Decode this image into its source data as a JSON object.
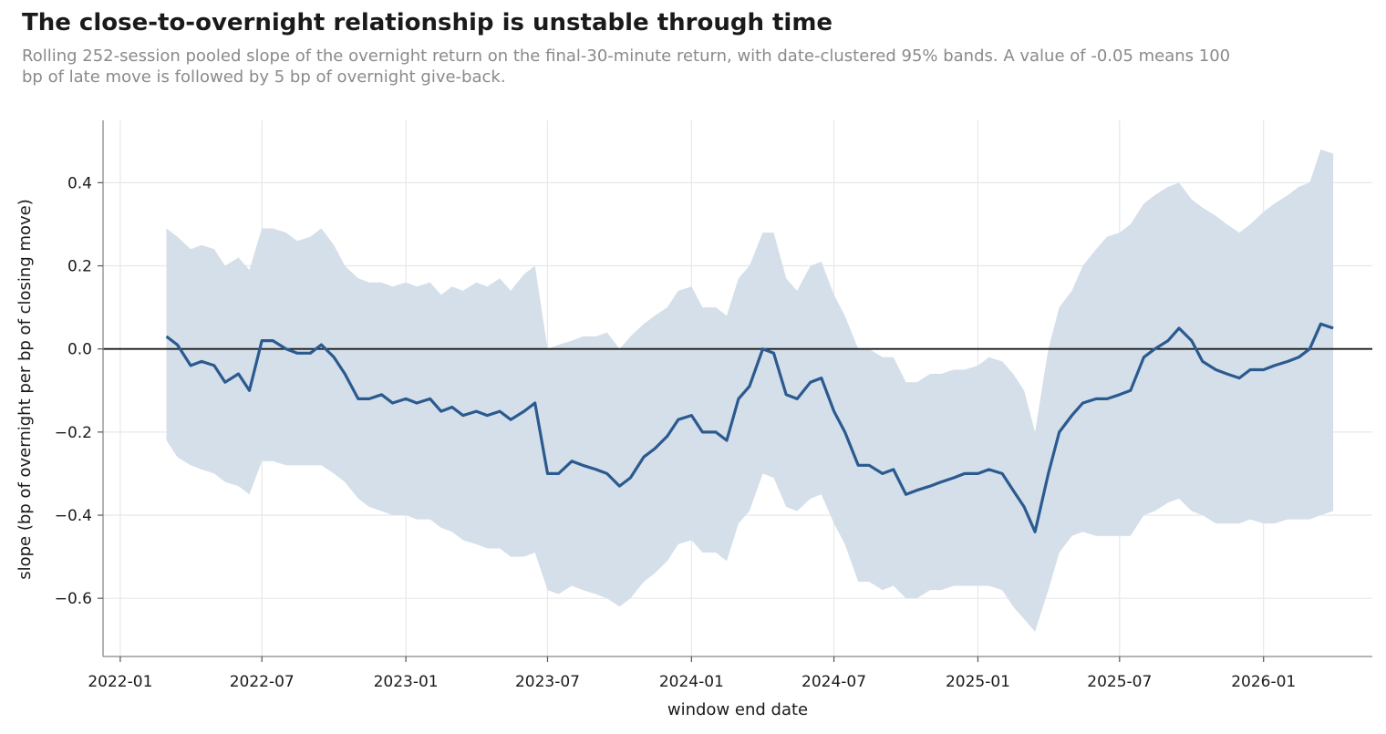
{
  "chart_data": {
    "type": "line",
    "title": "The close-to-overnight relationship is unstable through time",
    "subtitle": "Rolling 252-session pooled slope of the overnight return on the final-30-minute return, with date-clustered 95% bands. A value of -0.05 means 100 bp of late move is followed by 5 bp of overnight give-back.",
    "xlabel": "window end date",
    "ylabel": "slope (bp of overnight per bp of closing move)",
    "x_ticks": [
      "2022-01",
      "2022-07",
      "2023-01",
      "2023-07",
      "2024-01",
      "2024-07",
      "2025-01",
      "2025-07",
      "2026-01"
    ],
    "y_ticks": [
      0.4,
      0.2,
      0.0,
      -0.2,
      -0.4,
      -0.6
    ],
    "y_tick_labels": [
      "0.4",
      "0.2",
      "0.0",
      "−0.2",
      "−0.4",
      "−0.6"
    ],
    "ylim": [
      -0.74,
      0.55
    ],
    "xlim": [
      "2021-12-10",
      "2026-05-20"
    ],
    "grid": true,
    "zero_line": true,
    "colors": {
      "line": "#2b5a8f",
      "band": "#d4dfea",
      "grid": "#e6e8eb",
      "zero": "#1a1a1a"
    },
    "series": [
      {
        "x": [
          "2022-03-01",
          "2022-03-15",
          "2022-04-01",
          "2022-04-15",
          "2022-05-01",
          "2022-05-15",
          "2022-06-01",
          "2022-06-15",
          "2022-07-01",
          "2022-07-15",
          "2022-08-01",
          "2022-08-15",
          "2022-09-01",
          "2022-09-15",
          "2022-10-01",
          "2022-10-15",
          "2022-11-01",
          "2022-11-15",
          "2022-12-01",
          "2022-12-15",
          "2023-01-01",
          "2023-01-15",
          "2023-02-01",
          "2023-02-15",
          "2023-03-01",
          "2023-03-15",
          "2023-04-01",
          "2023-04-15",
          "2023-05-01",
          "2023-05-15",
          "2023-06-01",
          "2023-06-15",
          "2023-07-01",
          "2023-07-15",
          "2023-08-01",
          "2023-08-15",
          "2023-09-01",
          "2023-09-15",
          "2023-10-01",
          "2023-10-15",
          "2023-11-01",
          "2023-11-15",
          "2023-12-01",
          "2023-12-15",
          "2024-01-01",
          "2024-01-15",
          "2024-02-01",
          "2024-02-15",
          "2024-03-01",
          "2024-03-15",
          "2024-04-01",
          "2024-04-15",
          "2024-05-01",
          "2024-05-15",
          "2024-06-01",
          "2024-06-15",
          "2024-07-01",
          "2024-07-15",
          "2024-08-01",
          "2024-08-15",
          "2024-09-01",
          "2024-09-15",
          "2024-10-01",
          "2024-10-15",
          "2024-11-01",
          "2024-11-15",
          "2024-12-01",
          "2024-12-15",
          "2025-01-01",
          "2025-01-15",
          "2025-02-01",
          "2025-02-15",
          "2025-03-01",
          "2025-03-15",
          "2025-04-01",
          "2025-04-15",
          "2025-05-01",
          "2025-05-15",
          "2025-06-01",
          "2025-06-15",
          "2025-07-01",
          "2025-07-15",
          "2025-08-01",
          "2025-08-15",
          "2025-09-01",
          "2025-09-15",
          "2025-10-01",
          "2025-10-15",
          "2025-11-01",
          "2025-11-15",
          "2025-12-01",
          "2025-12-15",
          "2026-01-01",
          "2026-01-15",
          "2026-02-01",
          "2026-02-15",
          "2026-03-01",
          "2026-03-15",
          "2026-03-31"
        ],
        "slope": [
          0.03,
          0.01,
          -0.04,
          -0.03,
          -0.04,
          -0.08,
          -0.06,
          -0.1,
          0.02,
          0.02,
          0.0,
          -0.01,
          -0.01,
          0.01,
          -0.02,
          -0.06,
          -0.12,
          -0.12,
          -0.11,
          -0.13,
          -0.12,
          -0.13,
          -0.12,
          -0.15,
          -0.14,
          -0.16,
          -0.15,
          -0.16,
          -0.15,
          -0.17,
          -0.15,
          -0.13,
          -0.3,
          -0.3,
          -0.27,
          -0.28,
          -0.29,
          -0.3,
          -0.33,
          -0.31,
          -0.26,
          -0.24,
          -0.21,
          -0.17,
          -0.16,
          -0.2,
          -0.2,
          -0.22,
          -0.12,
          -0.09,
          0.0,
          -0.01,
          -0.11,
          -0.12,
          -0.08,
          -0.07,
          -0.15,
          -0.2,
          -0.28,
          -0.28,
          -0.3,
          -0.29,
          -0.35,
          -0.34,
          -0.33,
          -0.32,
          -0.31,
          -0.3,
          -0.3,
          -0.29,
          -0.3,
          -0.34,
          -0.38,
          -0.44,
          -0.3,
          -0.2,
          -0.16,
          -0.13,
          -0.12,
          -0.12,
          -0.11,
          -0.1,
          -0.02,
          0.0,
          0.02,
          0.05,
          0.02,
          -0.03,
          -0.05,
          -0.06,
          -0.07,
          -0.05,
          -0.05,
          -0.04,
          -0.03,
          -0.02,
          0.0,
          0.06,
          0.05
        ],
        "lower": [
          -0.22,
          -0.26,
          -0.28,
          -0.29,
          -0.3,
          -0.32,
          -0.33,
          -0.35,
          -0.27,
          -0.27,
          -0.28,
          -0.28,
          -0.28,
          -0.28,
          -0.3,
          -0.32,
          -0.36,
          -0.38,
          -0.39,
          -0.4,
          -0.4,
          -0.41,
          -0.41,
          -0.43,
          -0.44,
          -0.46,
          -0.47,
          -0.48,
          -0.48,
          -0.5,
          -0.5,
          -0.49,
          -0.58,
          -0.59,
          -0.57,
          -0.58,
          -0.59,
          -0.6,
          -0.62,
          -0.6,
          -0.56,
          -0.54,
          -0.51,
          -0.47,
          -0.46,
          -0.49,
          -0.49,
          -0.51,
          -0.42,
          -0.39,
          -0.3,
          -0.31,
          -0.38,
          -0.39,
          -0.36,
          -0.35,
          -0.42,
          -0.47,
          -0.56,
          -0.56,
          -0.58,
          -0.57,
          -0.6,
          -0.6,
          -0.58,
          -0.58,
          -0.57,
          -0.57,
          -0.57,
          -0.57,
          -0.58,
          -0.62,
          -0.65,
          -0.68,
          -0.58,
          -0.49,
          -0.45,
          -0.44,
          -0.45,
          -0.45,
          -0.45,
          -0.45,
          -0.4,
          -0.39,
          -0.37,
          -0.36,
          -0.39,
          -0.4,
          -0.42,
          -0.42,
          -0.42,
          -0.41,
          -0.42,
          -0.42,
          -0.41,
          -0.41,
          -0.41,
          -0.4,
          -0.39
        ],
        "upper": [
          0.29,
          0.27,
          0.24,
          0.25,
          0.24,
          0.2,
          0.22,
          0.19,
          0.29,
          0.29,
          0.28,
          0.26,
          0.27,
          0.29,
          0.25,
          0.2,
          0.17,
          0.16,
          0.16,
          0.15,
          0.16,
          0.15,
          0.16,
          0.13,
          0.15,
          0.14,
          0.16,
          0.15,
          0.17,
          0.14,
          0.18,
          0.2,
          0.0,
          0.01,
          0.02,
          0.03,
          0.03,
          0.04,
          0.0,
          0.03,
          0.06,
          0.08,
          0.1,
          0.14,
          0.15,
          0.1,
          0.1,
          0.08,
          0.17,
          0.2,
          0.28,
          0.28,
          0.17,
          0.14,
          0.2,
          0.21,
          0.13,
          0.08,
          0.0,
          0.0,
          -0.02,
          -0.02,
          -0.08,
          -0.08,
          -0.06,
          -0.06,
          -0.05,
          -0.05,
          -0.04,
          -0.02,
          -0.03,
          -0.06,
          -0.1,
          -0.2,
          0.0,
          0.1,
          0.14,
          0.2,
          0.24,
          0.27,
          0.28,
          0.3,
          0.35,
          0.37,
          0.39,
          0.4,
          0.36,
          0.34,
          0.32,
          0.3,
          0.28,
          0.3,
          0.33,
          0.35,
          0.37,
          0.39,
          0.4,
          0.48,
          0.47
        ]
      }
    ]
  }
}
